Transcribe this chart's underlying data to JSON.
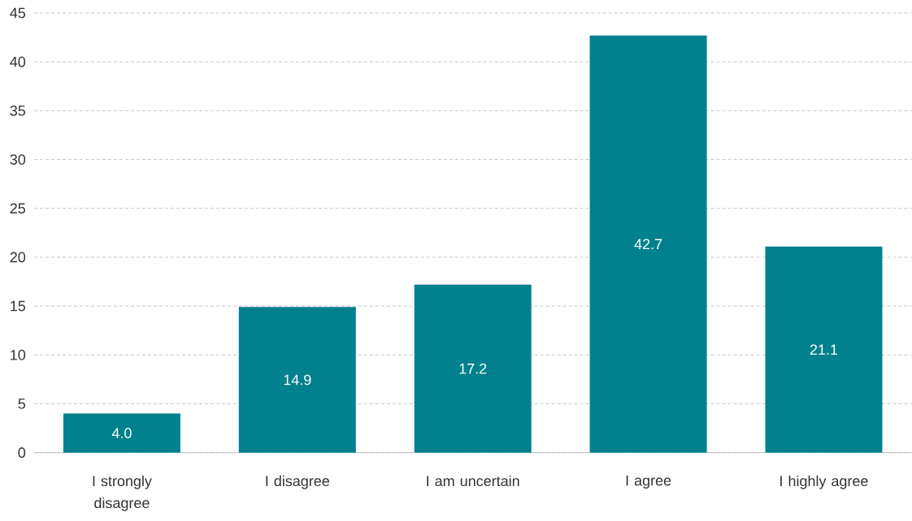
{
  "chart_data": {
    "type": "bar",
    "categories": [
      "I strongly disagree",
      "I disagree",
      "I am uncertain",
      "I agree",
      "I highly agree"
    ],
    "values": [
      4.0,
      14.9,
      17.2,
      42.7,
      21.1
    ],
    "value_labels": [
      "4.0",
      "14.9",
      "17.2",
      "42.7",
      "21.1"
    ],
    "color": "#00818d",
    "ylim": [
      0,
      45
    ],
    "yticks": [
      0,
      5,
      10,
      15,
      20,
      25,
      30,
      35,
      40,
      45
    ],
    "grid": "y"
  }
}
